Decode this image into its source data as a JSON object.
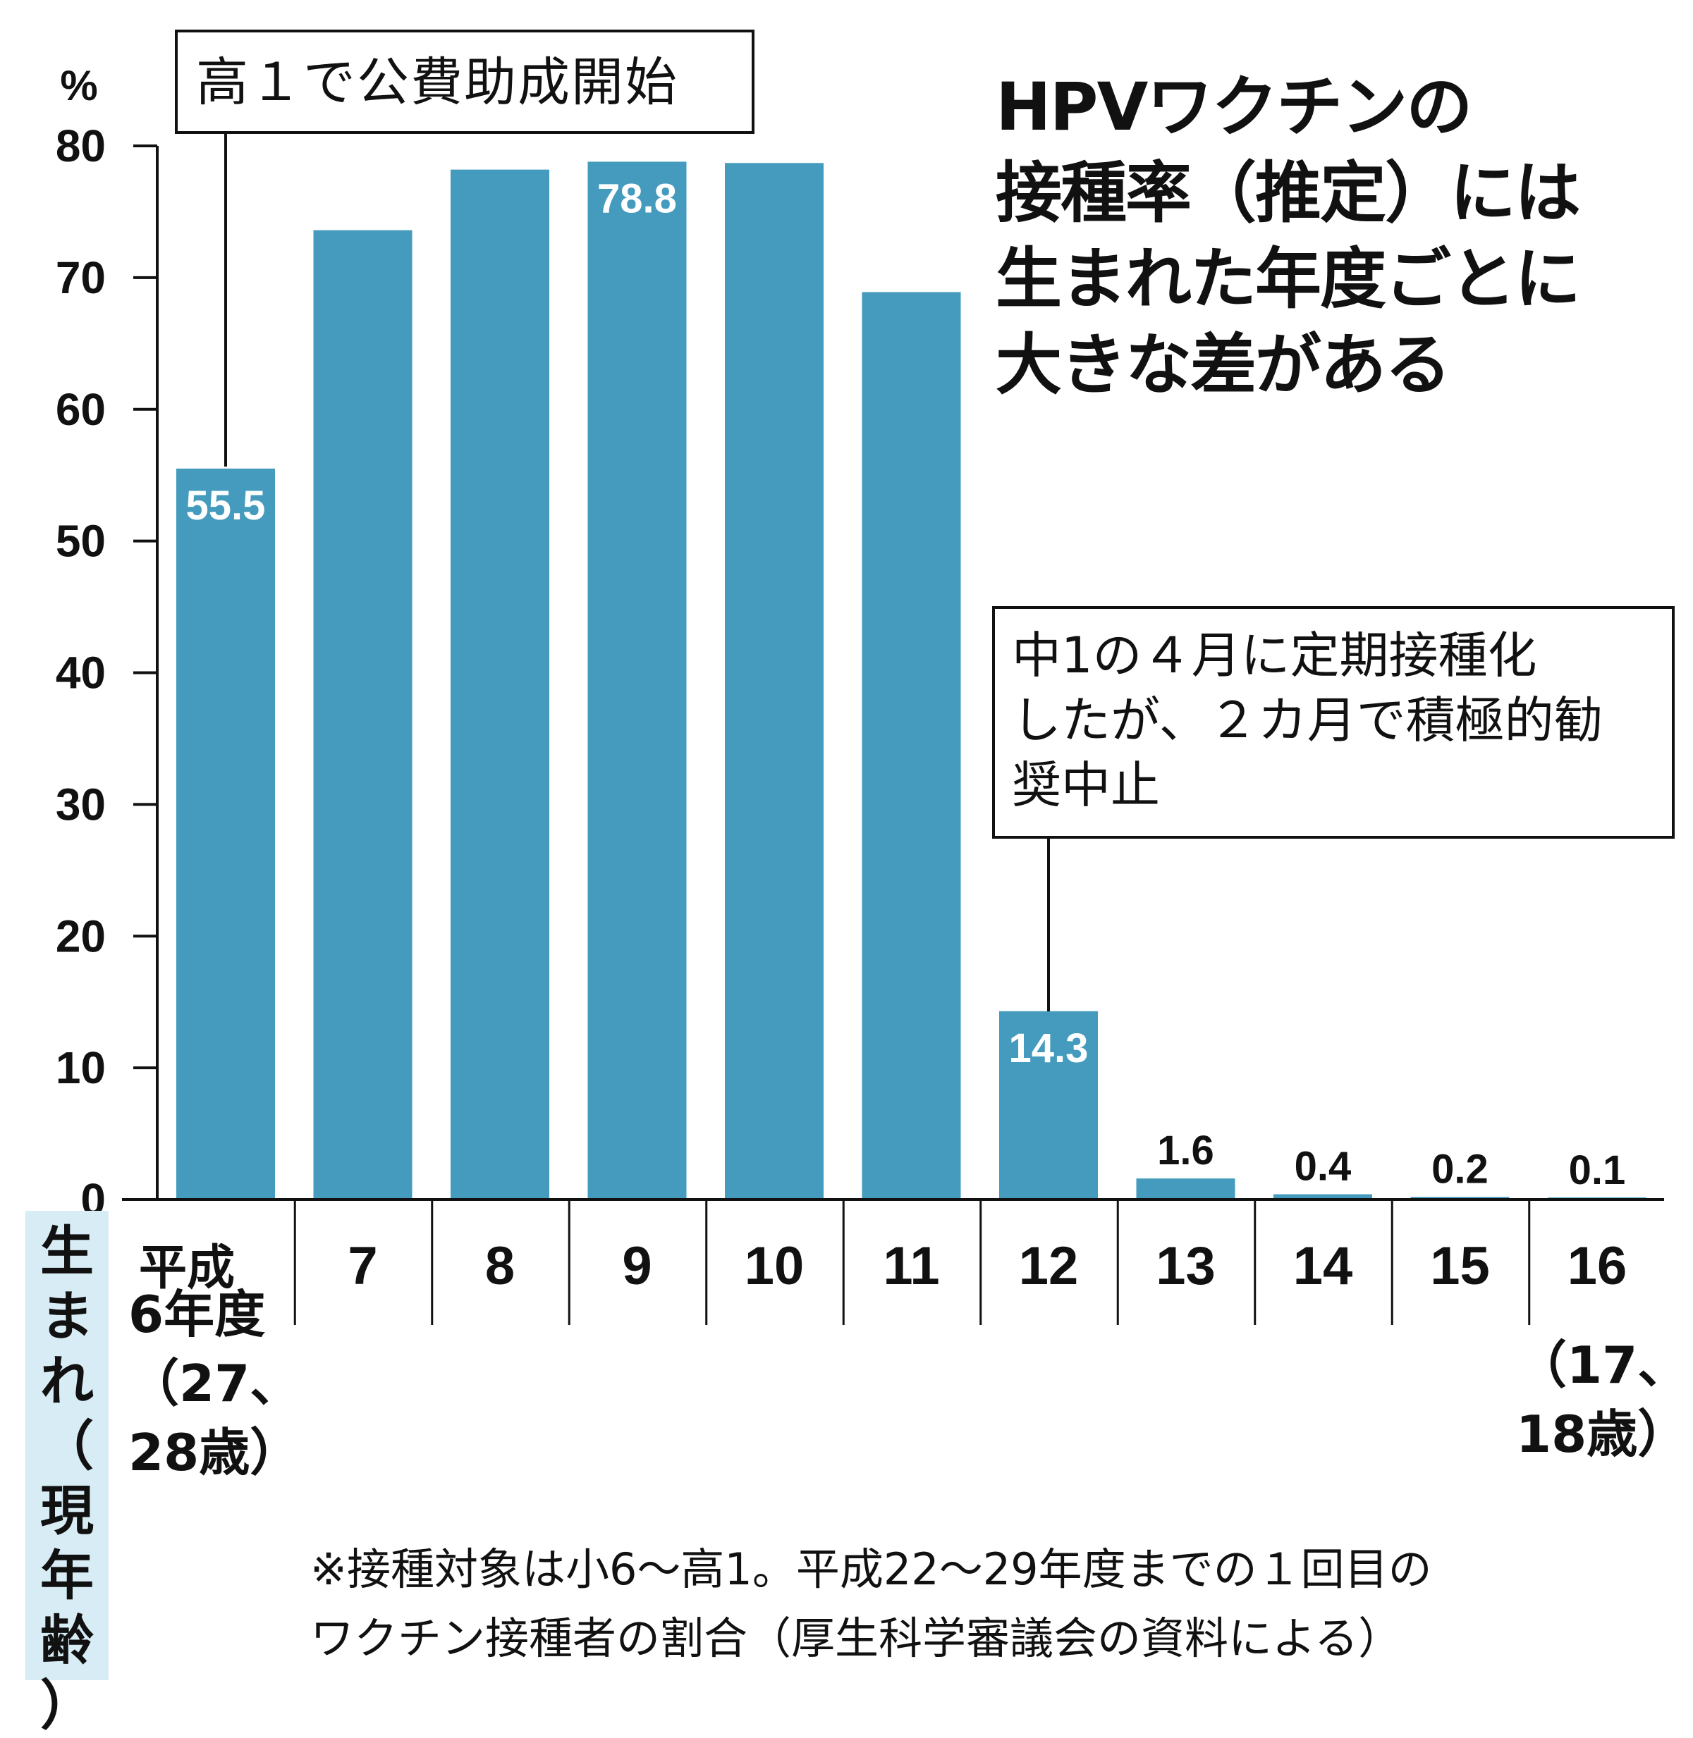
{
  "chart_data": {
    "type": "bar",
    "title": "HPVワクチンの\n接種率（推定）には\n生まれた年度ごとに\n大きな差がある",
    "ylabel": "%",
    "xlabel": "生まれ（現年齢）",
    "ylim": [
      0,
      80
    ],
    "yticks": [
      0,
      10,
      20,
      30,
      40,
      50,
      60,
      70,
      80
    ],
    "grid": false,
    "categories": [
      "平成",
      "7",
      "8",
      "9",
      "10",
      "11",
      "12",
      "13",
      "14",
      "15",
      "16"
    ],
    "values": [
      55.5,
      73.6,
      78.2,
      78.8,
      78.7,
      68.9,
      14.3,
      1.6,
      0.4,
      0.2,
      0.1
    ],
    "data_labels": [
      "55.5",
      "",
      "",
      "78.8",
      "",
      "",
      "14.3",
      "1.6",
      "0.4",
      "0.2",
      "0.1"
    ],
    "category_notes": {
      "first": "6年度\n（27、\n28歳）",
      "last": "（17、\n18歳）"
    },
    "annotations": [
      {
        "text": "高１で公費助成開始",
        "category_index": 0
      },
      {
        "text": "中1の４月に定期接種化\nしたが、２カ月で積極的勧\n奨中止",
        "category_index": 6
      }
    ],
    "bar_color": "#449bbd",
    "footnote": "※接種対象は小6〜高1。平成22〜29年度までの１回目の\nワクチン接種者の割合（厚生科学審議会の資料による）"
  }
}
